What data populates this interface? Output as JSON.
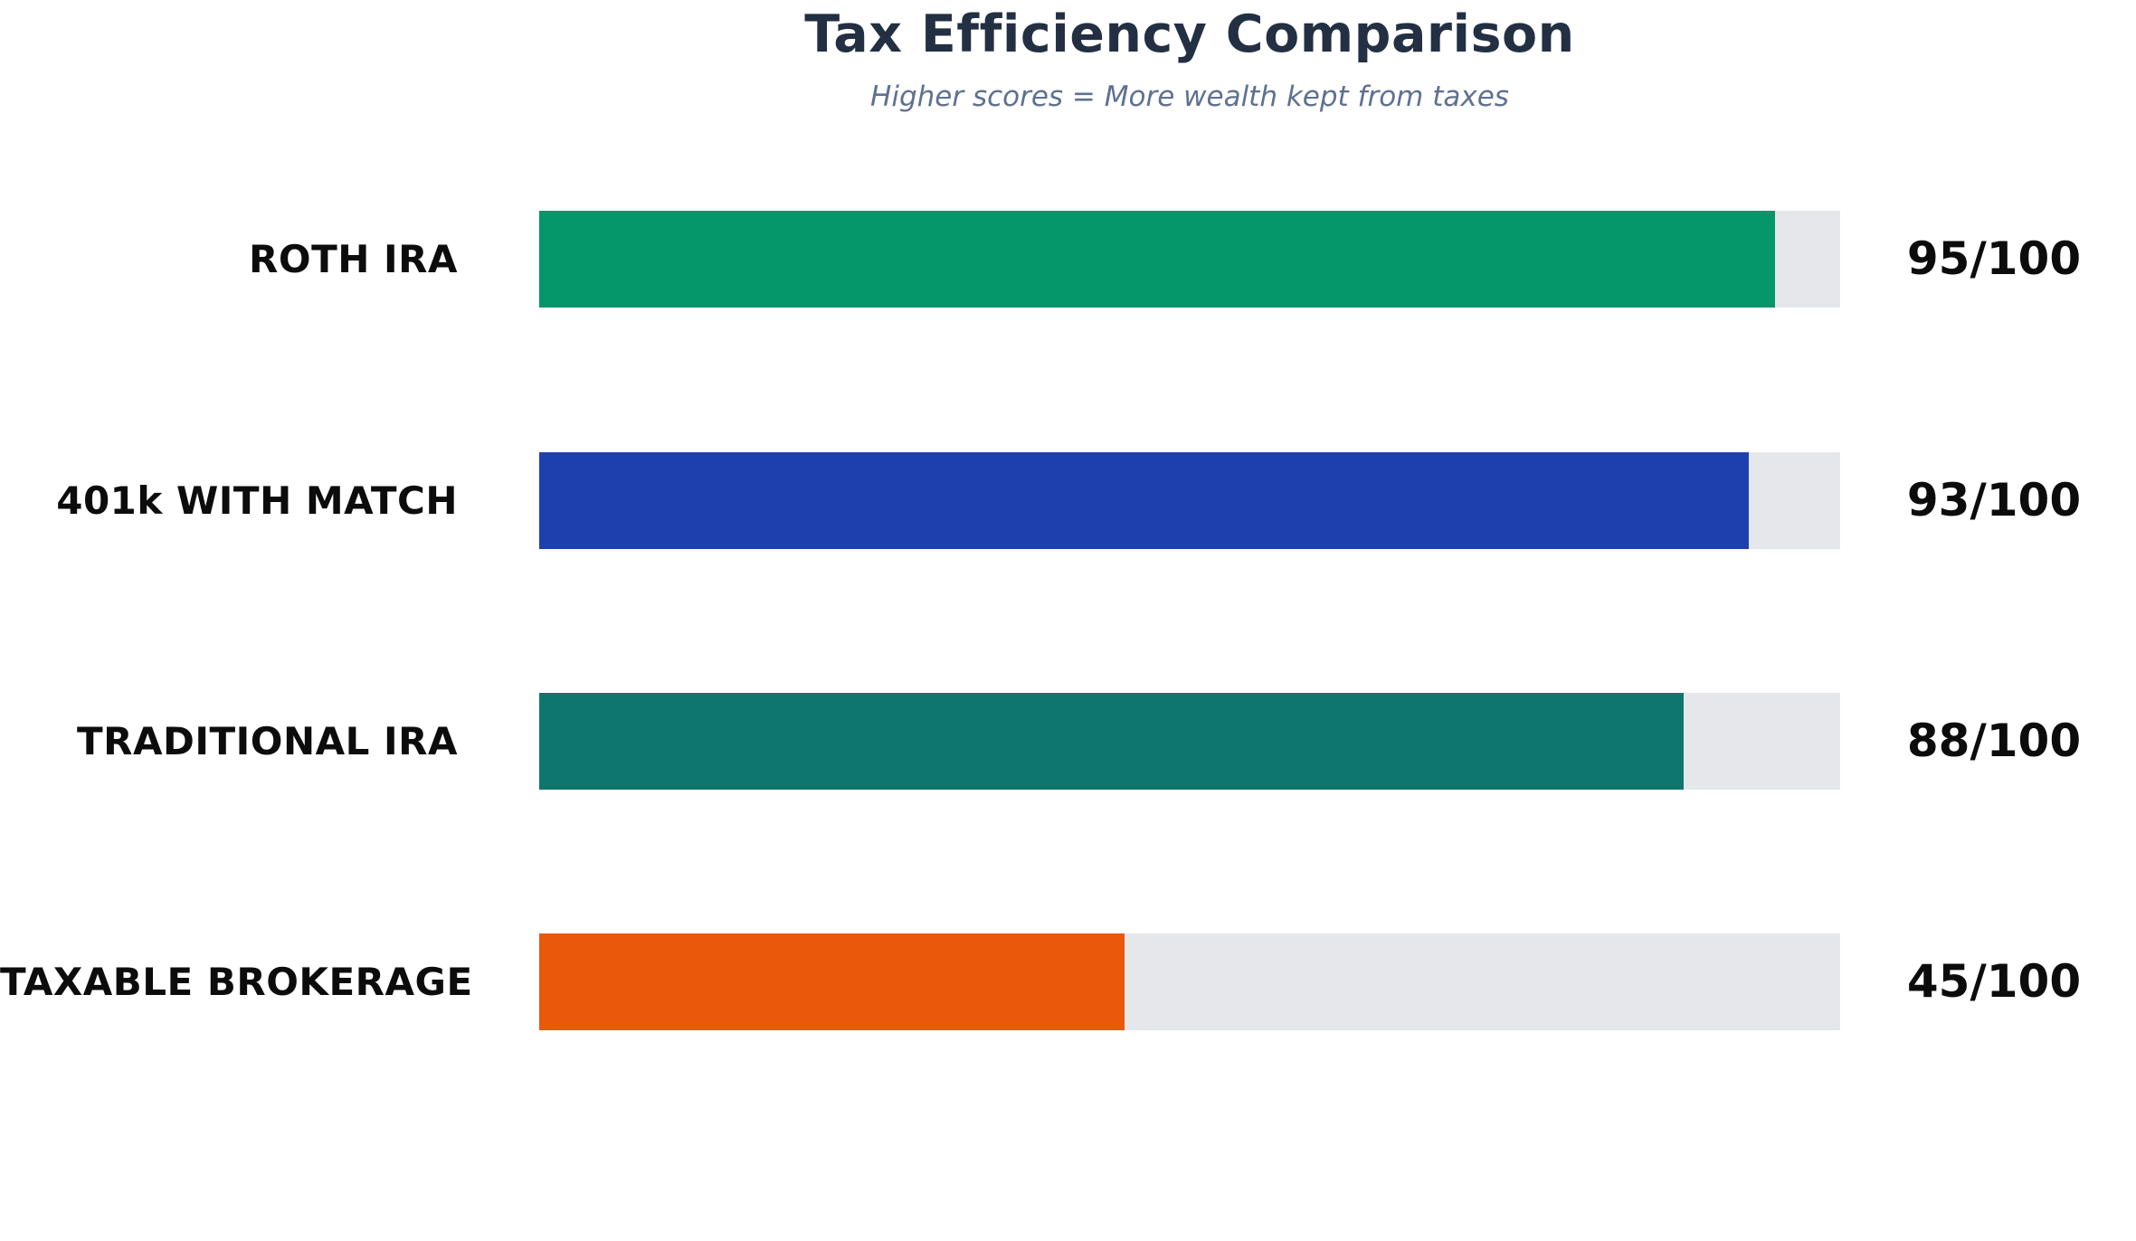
{
  "chart_data": {
    "type": "bar",
    "orientation": "horizontal",
    "title": "Tax Efficiency Comparison",
    "subtitle": "Higher scores = More wealth kept from taxes",
    "xlim": [
      0,
      100
    ],
    "grid": false,
    "legend": "none",
    "categories": [
      "ROTH IRA",
      "401k WITH MATCH",
      "TRADITIONAL IRA",
      "TAXABLE BROKERAGE"
    ],
    "values": [
      95,
      93,
      88,
      45
    ],
    "max_score": 100,
    "track_color": "#e5e7eb",
    "rows": [
      {
        "label": "ROTH IRA",
        "value": 95,
        "max": 100,
        "score_label": "95/100",
        "color": "#059669"
      },
      {
        "label": "401k WITH MATCH",
        "value": 93,
        "max": 100,
        "score_label": "93/100",
        "color": "#1e40af"
      },
      {
        "label": "TRADITIONAL IRA",
        "value": 88,
        "max": 100,
        "score_label": "88/100",
        "color": "#0f766e"
      },
      {
        "label": "TAXABLE BROKERAGE",
        "value": 45,
        "max": 100,
        "score_label": "45/100",
        "color": "#ea580c"
      }
    ]
  },
  "colors": {
    "title_text": "#232f42",
    "subtitle_text": "#5f7190",
    "label_text": "#0c0c0c",
    "background": "#ffffff"
  }
}
